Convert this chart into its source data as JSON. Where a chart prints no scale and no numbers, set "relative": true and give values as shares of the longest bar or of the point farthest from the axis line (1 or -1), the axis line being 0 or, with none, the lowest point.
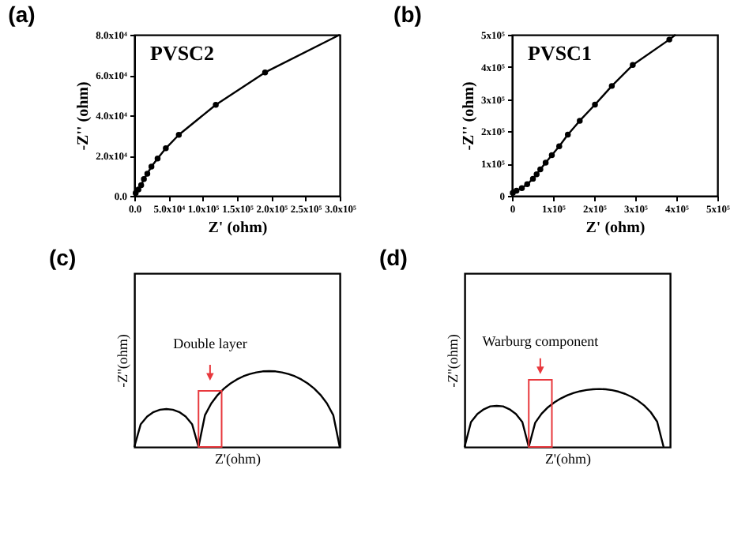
{
  "chart_data": [
    {
      "type": "scatter",
      "title": "(a)",
      "xlabel": "Z' (ohm)",
      "ylabel": "-Z'' (ohm)",
      "annotations": [
        "PVSC2"
      ],
      "xlim": [
        0,
        300000
      ],
      "xticks": [
        {
          "value": 0,
          "label": "0.0"
        },
        {
          "value": 50000,
          "label": "5.0x10⁴"
        },
        {
          "value": 100000,
          "label": "1.0x10⁵"
        },
        {
          "value": 150000,
          "label": "1.5x10⁵"
        },
        {
          "value": 200000,
          "label": "2.0x10⁵"
        },
        {
          "value": 250000,
          "label": "2.5x10⁵"
        },
        {
          "value": 300000,
          "label": "3.0x10⁵"
        }
      ],
      "ylim": [
        0,
        80000
      ],
      "yticks": [
        {
          "value": 0,
          "label": "0.0"
        },
        {
          "value": 20000,
          "label": "2.0x10⁴"
        },
        {
          "value": 40000,
          "label": "4.0x10⁴"
        },
        {
          "value": 60000,
          "label": "6.0x10⁴"
        },
        {
          "value": 80000,
          "label": "8.0x10⁴"
        }
      ],
      "series": [
        {
          "type": "line",
          "marker": "none",
          "line_style": "solid",
          "color": "#000000",
          "x": [
            0,
            2000,
            6000,
            10000,
            14000,
            19000,
            25000,
            34000,
            46000,
            65000,
            119000,
            191000,
            300000
          ],
          "values": [
            0,
            1400,
            3100,
            5300,
            8300,
            11000,
            14500,
            18500,
            23600,
            30300,
            45200,
            61300,
            80000
          ]
        },
        {
          "type": "scatter",
          "marker": "circle",
          "color": "#000000",
          "x": [
            2000,
            6000,
            10000,
            14000,
            19000,
            25000,
            34000,
            46000,
            65000,
            119000,
            191000
          ],
          "values": [
            1400,
            3100,
            5300,
            8300,
            11000,
            14500,
            18500,
            23600,
            30300,
            45200,
            61300
          ]
        }
      ]
    },
    {
      "type": "scatter",
      "title": "(b)",
      "xlabel": "Z' (ohm)",
      "ylabel": "-Z'' (ohm)",
      "annotations": [
        "PVSC1"
      ],
      "xlim": [
        0,
        500000
      ],
      "xticks": [
        {
          "value": 0,
          "label": "0"
        },
        {
          "value": 100000,
          "label": "1x10⁵"
        },
        {
          "value": 200000,
          "label": "2x10⁵"
        },
        {
          "value": 300000,
          "label": "3x10⁵"
        },
        {
          "value": 400000,
          "label": "4x10⁵"
        },
        {
          "value": 500000,
          "label": "5x10⁵"
        }
      ],
      "ylim": [
        0,
        500000
      ],
      "yticks": [
        {
          "value": 0,
          "label": "0"
        },
        {
          "value": 100000,
          "label": "1x10⁵"
        },
        {
          "value": 200000,
          "label": "2x10⁵"
        },
        {
          "value": 300000,
          "label": "3x10⁵"
        },
        {
          "value": 400000,
          "label": "4x10⁵"
        },
        {
          "value": 500000,
          "label": "5x10⁵"
        }
      ],
      "series": [
        {
          "type": "line",
          "marker": "none",
          "line_style": "solid",
          "color": "#000000",
          "x": [
            0,
            2000,
            11000,
            24000,
            37000,
            51000,
            60000,
            69000,
            82000,
            97000,
            115000,
            136000,
            165000,
            202000,
            243000,
            294000,
            383000,
            398000
          ],
          "values": [
            0,
            9000,
            16000,
            24000,
            36000,
            53000,
            67000,
            82000,
            103000,
            126000,
            154000,
            190000,
            233000,
            283000,
            341000,
            406000,
            485000,
            500000
          ]
        },
        {
          "type": "scatter",
          "marker": "circle",
          "color": "#000000",
          "x": [
            2000,
            11000,
            24000,
            37000,
            51000,
            60000,
            69000,
            82000,
            97000,
            115000,
            136000,
            165000,
            202000,
            243000,
            294000,
            383000
          ],
          "values": [
            9000,
            16000,
            24000,
            36000,
            53000,
            67000,
            82000,
            103000,
            126000,
            154000,
            190000,
            233000,
            283000,
            341000,
            406000,
            485000
          ]
        }
      ]
    },
    {
      "type": "line",
      "title": "(c)",
      "xlabel": "Z'(ohm)",
      "ylabel": "-Z''(ohm)",
      "relative": true,
      "annotations": [
        "Double layer"
      ],
      "categories": [
        null,
        null,
        null,
        null,
        null,
        null,
        null,
        null,
        null,
        null,
        null,
        null,
        null,
        null,
        null,
        null,
        null,
        null,
        null,
        null,
        null,
        null,
        null,
        null,
        null,
        null,
        null,
        null,
        null,
        null,
        null,
        null,
        null
      ],
      "series": [
        {
          "color": "#000000",
          "values": [
            0,
            0.3,
            0.4,
            0.46,
            0.49,
            0.5,
            0.49,
            0.46,
            0.4,
            0.3,
            0,
            null,
            null,
            null,
            null,
            null,
            null,
            null,
            null,
            null,
            null,
            null,
            null,
            null,
            null,
            null,
            null,
            null,
            null,
            null,
            null,
            null,
            null
          ]
        },
        {
          "color": "#000000",
          "values": [
            null,
            null,
            null,
            null,
            null,
            null,
            null,
            null,
            null,
            null,
            0,
            0.417,
            0.575,
            0.686,
            0.771,
            0.838,
            0.891,
            0.932,
            0.962,
            0.983,
            0.996,
            1,
            0.996,
            0.983,
            0.962,
            0.932,
            0.891,
            0.838,
            0.771,
            0.686,
            0.575,
            0.417,
            0
          ]
        }
      ]
    },
    {
      "type": "line",
      "title": "(d)",
      "xlabel": "Z'(ohm)",
      "ylabel": "-Z''(ohm)",
      "relative": true,
      "annotations": [
        "Warburg component"
      ],
      "categories": [
        null,
        null,
        null,
        null,
        null,
        null,
        null,
        null,
        null,
        null,
        null,
        null,
        null,
        null,
        null,
        null,
        null,
        null,
        null,
        null,
        null,
        null,
        null,
        null,
        null,
        null,
        null,
        null,
        null,
        null,
        null,
        null,
        null
      ],
      "series": [
        {
          "color": "#000000",
          "values": [
            0,
            0.43,
            0.57,
            0.65,
            0.7,
            0.71,
            0.7,
            0.65,
            0.57,
            0.43,
            0,
            null,
            null,
            null,
            null,
            null,
            null,
            null,
            null,
            null,
            null,
            null,
            null,
            null,
            null,
            null,
            null,
            null,
            null,
            null,
            null,
            null,
            null
          ]
        },
        {
          "color": "#000000",
          "values": [
            null,
            null,
            null,
            null,
            null,
            null,
            null,
            null,
            null,
            null,
            0,
            0.417,
            0.575,
            0.686,
            0.771,
            0.838,
            0.891,
            0.932,
            0.962,
            0.983,
            0.996,
            1,
            0.995,
            0.98,
            0.954,
            0.917,
            0.866,
            0.8,
            0.714,
            0.6,
            0.436,
            0,
            null
          ]
        }
      ]
    }
  ]
}
